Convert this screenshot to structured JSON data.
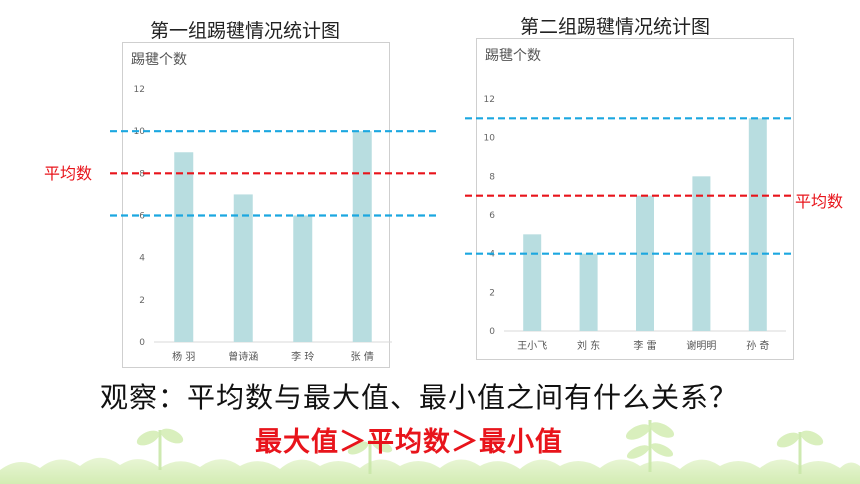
{
  "chart_data": [
    {
      "type": "bar",
      "title": "第一组踢毽情况统计图",
      "ylabel": "踢毽个数",
      "categories": [
        "杨 羽",
        "曾诗涵",
        "李 玲",
        "张 倩"
      ],
      "values": [
        9,
        7,
        6,
        10
      ],
      "ylim": [
        0,
        12
      ],
      "yticks": [
        0,
        2,
        4,
        6,
        8,
        10,
        12
      ],
      "bar_color": "#b8dde0",
      "grid": false,
      "reference_lines": [
        {
          "value": 10,
          "color": "#1ba7e0",
          "style": "dashed",
          "label": ""
        },
        {
          "value": 8,
          "color": "#e8141b",
          "style": "dashed",
          "label": "平均数"
        },
        {
          "value": 6,
          "color": "#1ba7e0",
          "style": "dashed",
          "label": ""
        }
      ]
    },
    {
      "type": "bar",
      "title": "第二组踢毽情况统计图",
      "ylabel": "踢毽个数",
      "categories": [
        "王小飞",
        "刘 东",
        "李 雷",
        "谢明明",
        "孙 奇"
      ],
      "values": [
        5,
        4,
        7,
        8,
        11
      ],
      "ylim": [
        0,
        12
      ],
      "yticks": [
        0,
        2,
        4,
        6,
        8,
        10,
        12
      ],
      "bar_color": "#b8dde0",
      "grid": false,
      "reference_lines": [
        {
          "value": 11,
          "color": "#1ba7e0",
          "style": "dashed",
          "label": ""
        },
        {
          "value": 7,
          "color": "#e8141b",
          "style": "dashed",
          "label": "平均数"
        },
        {
          "value": 4,
          "color": "#1ba7e0",
          "style": "dashed",
          "label": ""
        }
      ]
    }
  ],
  "question": "观察：平均数与最大值、最小值之间有什么关系？",
  "answer": "最大值＞平均数＞最小值",
  "decoration": "green-sprout-and-grass-border"
}
